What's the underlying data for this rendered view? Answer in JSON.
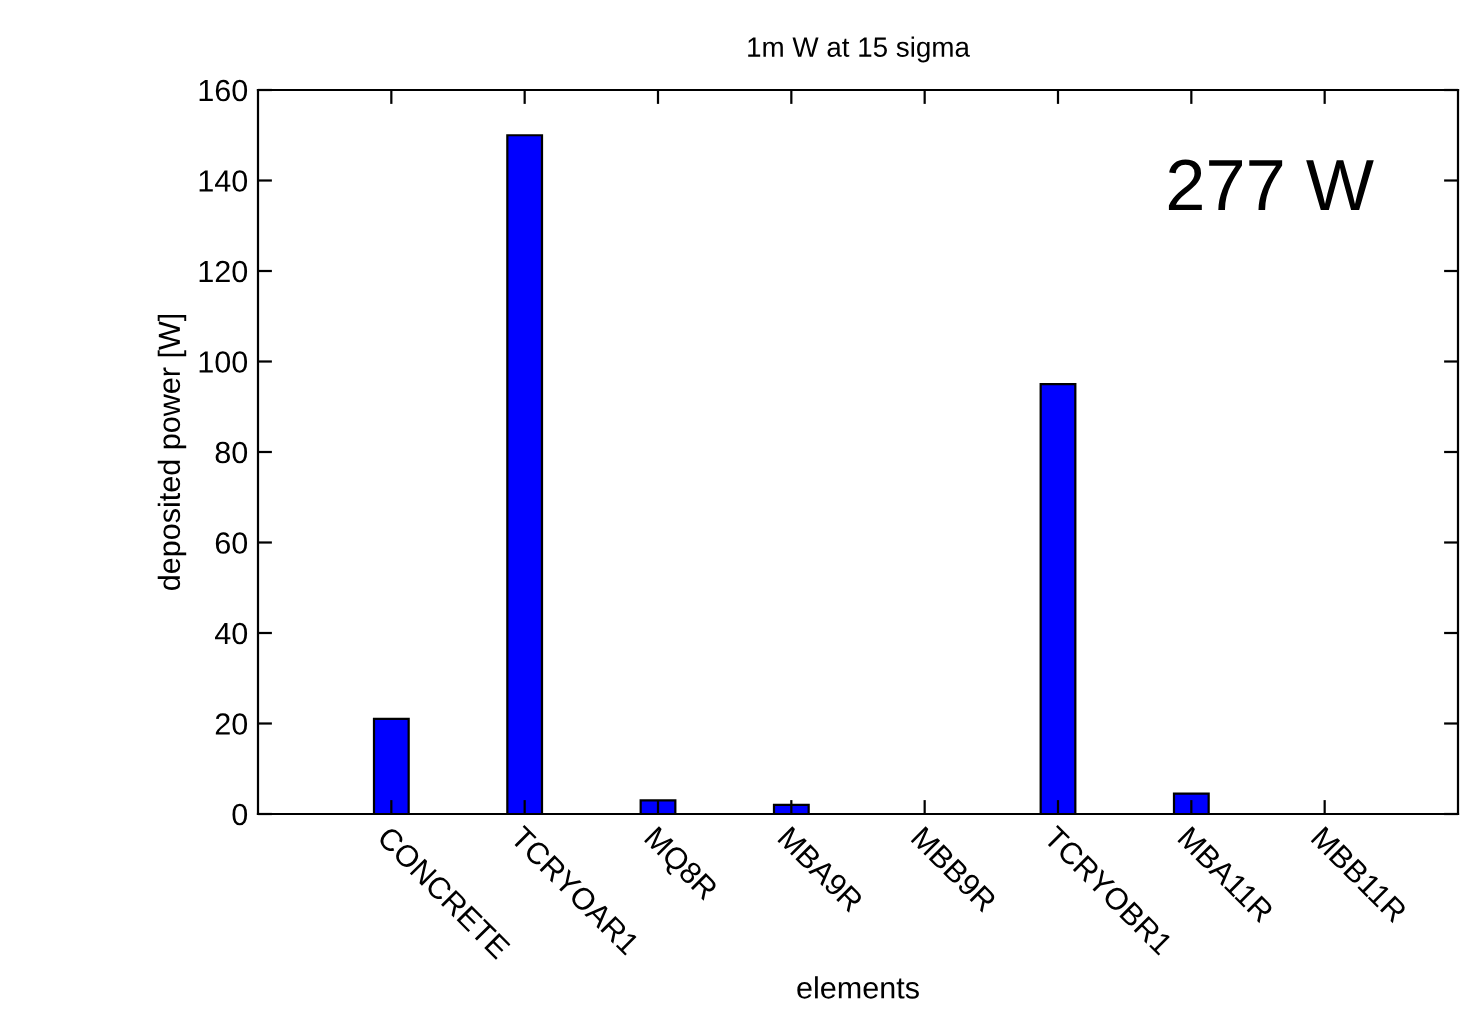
{
  "chart_data": {
    "type": "bar",
    "title": "1m W at 15 sigma",
    "xlabel": "elements",
    "ylabel": "deposited power [W]",
    "categories": [
      "CONCRETE",
      "TCRYOAR1",
      "MQ8R",
      "MBA9R",
      "MBB9R",
      "TCRYOBR1",
      "MBA11R",
      "MBB11R"
    ],
    "values": [
      21,
      150,
      3,
      2,
      0,
      95,
      4.5,
      0
    ],
    "color": "#0000ff",
    "ylim": [
      0,
      160
    ],
    "yticks": [
      0,
      20,
      40,
      60,
      80,
      100,
      120,
      140,
      160
    ],
    "grid": false,
    "annotations": [
      "277 W"
    ]
  }
}
